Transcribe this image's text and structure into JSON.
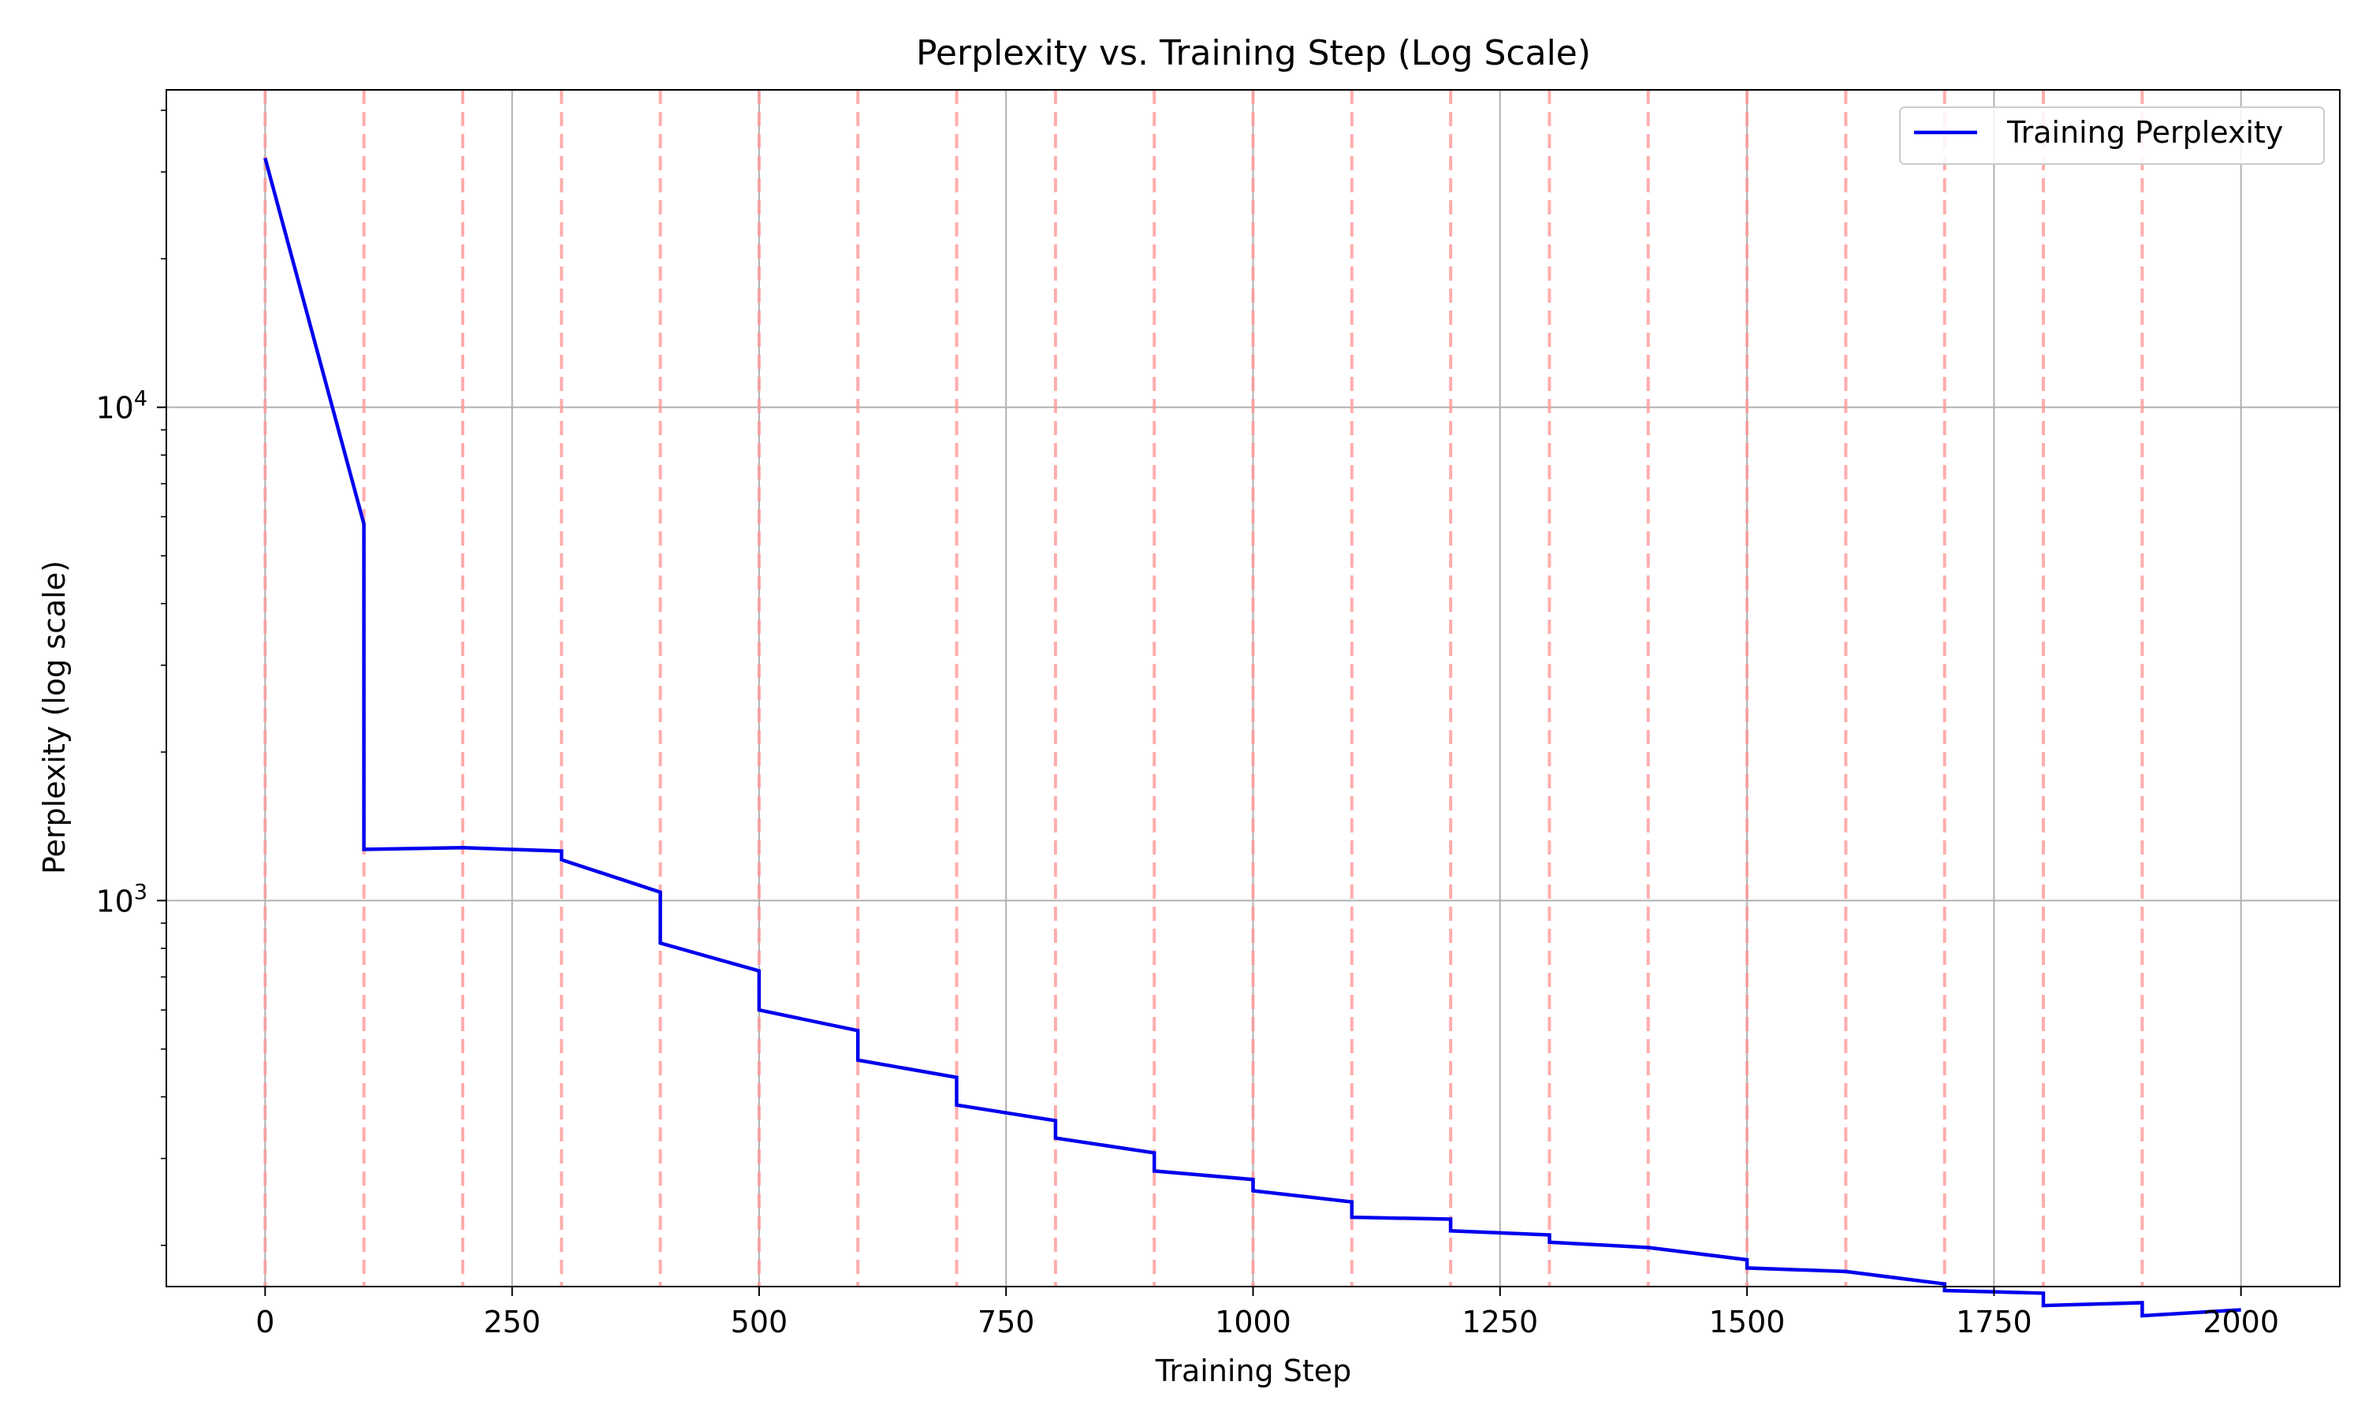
{
  "chart_data": {
    "type": "line",
    "title": "Perplexity vs. Training Step (Log Scale)",
    "xlabel": "Training Step",
    "ylabel": "Perplexity (log scale)",
    "x_scale": "linear",
    "y_scale": "log",
    "xlim": [
      -100,
      2100
    ],
    "ylim": [
      165,
      44000
    ],
    "x_ticks": [
      0,
      250,
      500,
      750,
      1000,
      1250,
      1500,
      1750,
      2000
    ],
    "x_tick_labels": [
      "0",
      "250",
      "500",
      "750",
      "1000",
      "1250",
      "1500",
      "1750",
      "2000"
    ],
    "y_ticks": [
      1000,
      10000
    ],
    "y_tick_labels": [
      {
        "base": "10",
        "exp": "3"
      },
      {
        "base": "10",
        "exp": "4"
      }
    ],
    "grid": true,
    "legend_position": "top-right",
    "vertical_markers": {
      "x": [
        0,
        100,
        200,
        300,
        400,
        500,
        600,
        700,
        800,
        900,
        1000,
        1100,
        1200,
        1300,
        1400,
        1500,
        1600,
        1700,
        1800,
        1900
      ],
      "style": "dashed",
      "color": "#ff9999"
    },
    "series": [
      {
        "name": "Training Perplexity",
        "color": "#0000ee",
        "x": [
          0,
          100,
          100,
          200,
          300,
          300,
          400,
          400,
          500,
          500,
          600,
          600,
          700,
          700,
          800,
          800,
          900,
          900,
          1000,
          1000,
          1100,
          1100,
          1200,
          1200,
          1300,
          1300,
          1400,
          1500,
          1500,
          1600,
          1700,
          1700,
          1800,
          1800,
          1900,
          1900,
          2000
        ],
        "y": [
          32000,
          5800,
          1270,
          1280,
          1260,
          1210,
          1040,
          820,
          720,
          600,
          545,
          475,
          438,
          385,
          358,
          330,
          308,
          283,
          272,
          258,
          245,
          228,
          226,
          214,
          210,
          203,
          198,
          187,
          180,
          177,
          167,
          162,
          160,
          151,
          153,
          144,
          148
        ]
      }
    ]
  }
}
